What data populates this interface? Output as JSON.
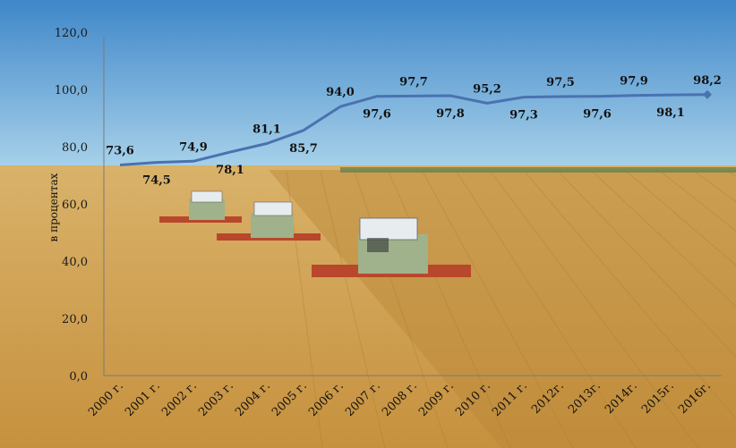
{
  "colors": {
    "sky_top": "#3f87c9",
    "sky_bottom": "#a9d2ea",
    "field_light": "#d9b26a",
    "field_dark": "#c6913e",
    "line": "#4a72b0",
    "axis": "#7a7a7a"
  },
  "icons": [
    "harvester-icon",
    "harvester-icon",
    "harvester-icon"
  ],
  "chart_data": {
    "type": "line",
    "title": "",
    "xlabel": "",
    "ylabel": "в процентах",
    "ylim": [
      0,
      120
    ],
    "yticks": [
      "0,0",
      "20,0",
      "40,0",
      "60,0",
      "80,0",
      "100,0",
      "120,0"
    ],
    "categories": [
      "2000 г.",
      "2001 г.",
      "2002 г.",
      "2003 г.",
      "2004 г.",
      "2005 г.",
      "2006 г.",
      "2007 г.",
      "2008 г.",
      "2009 г.",
      "2010 г.",
      "2011 г.",
      "2012г.",
      "2013г.",
      "2014г.",
      "2015г.",
      "2016г."
    ],
    "values": [
      73.6,
      74.5,
      74.9,
      78.1,
      81.1,
      85.7,
      94.0,
      97.6,
      97.7,
      97.8,
      95.2,
      97.3,
      97.5,
      97.6,
      97.9,
      98.1,
      98.2
    ],
    "value_labels": [
      "73,6",
      "74,5",
      "74,9",
      "78,1",
      "81,1",
      "85,7",
      "94,0",
      "97,6",
      "97,7",
      "97,8",
      "95,2",
      "97,3",
      "97,5",
      "97,6",
      "97,9",
      "98,1",
      "98,2"
    ],
    "grid": false,
    "legend": "none"
  }
}
